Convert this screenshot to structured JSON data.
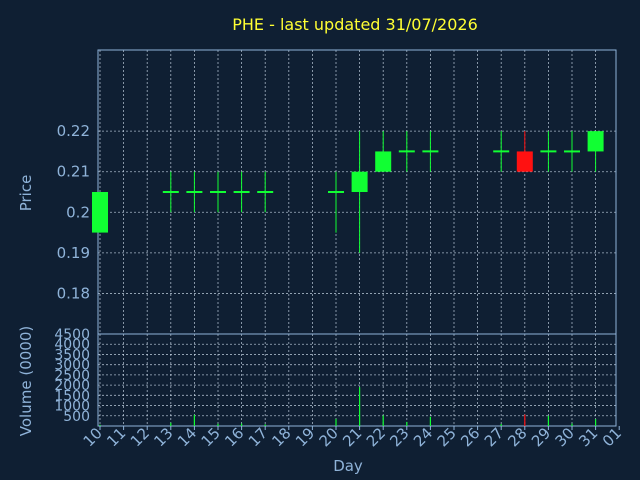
{
  "colors": {
    "background": "#0f1f33",
    "frame": "#8fb3d9",
    "grid": "#d8e6f5",
    "title": "#ffff33",
    "text": "#8fb3d9",
    "up": "#11ff33",
    "down": "#ff1111"
  },
  "chart_data": {
    "type": "candlestick",
    "title": "PHE - last updated 31/07/2026",
    "xlabel": "Day",
    "grid": true,
    "x_tick_labels": [
      "10",
      "11",
      "12",
      "13",
      "14",
      "15",
      "16",
      "17",
      "18",
      "19",
      "20",
      "21",
      "22",
      "23",
      "24",
      "25",
      "26",
      "27",
      "28",
      "29",
      "30",
      "31",
      "01"
    ],
    "price_panel": {
      "ylabel": "Price",
      "ylim": [
        0.17,
        0.24
      ],
      "y_ticks": [
        0.18,
        0.19,
        0.2,
        0.21,
        0.22
      ],
      "y_tick_labels": [
        "0.18",
        "0.19",
        "0.2",
        "0.21",
        "0.22"
      ]
    },
    "volume_panel": {
      "ylabel": "Volume (0000)",
      "ylim": [
        0,
        4500
      ],
      "y_ticks": [
        500,
        1000,
        1500,
        2000,
        2500,
        3000,
        3500,
        4000,
        4500
      ],
      "y_tick_labels": [
        "500",
        "1000",
        "1500",
        "2000",
        "2500",
        "3000",
        "3500",
        "4000",
        "4500"
      ]
    },
    "candles": [
      {
        "day": "10",
        "open": 0.195,
        "high": 0.205,
        "low": 0.195,
        "close": 0.205,
        "volume": 60
      },
      {
        "day": "13",
        "open": 0.205,
        "high": 0.21,
        "low": 0.2,
        "close": 0.205,
        "volume": 160
      },
      {
        "day": "14",
        "open": 0.205,
        "high": 0.21,
        "low": 0.2,
        "close": 0.205,
        "volume": 550
      },
      {
        "day": "15",
        "open": 0.205,
        "high": 0.21,
        "low": 0.2,
        "close": 0.205,
        "volume": 110
      },
      {
        "day": "16",
        "open": 0.205,
        "high": 0.21,
        "low": 0.2,
        "close": 0.205,
        "volume": 120
      },
      {
        "day": "17",
        "open": 0.205,
        "high": 0.21,
        "low": 0.2,
        "close": 0.205,
        "volume": 80
      },
      {
        "day": "20",
        "open": 0.205,
        "high": 0.21,
        "low": 0.195,
        "close": 0.205,
        "volume": 350
      },
      {
        "day": "21",
        "open": 0.205,
        "high": 0.22,
        "low": 0.19,
        "close": 0.21,
        "volume": 1900
      },
      {
        "day": "22",
        "open": 0.21,
        "high": 0.22,
        "low": 0.21,
        "close": 0.215,
        "volume": 520
      },
      {
        "day": "23",
        "open": 0.215,
        "high": 0.22,
        "low": 0.21,
        "close": 0.215,
        "volume": 200
      },
      {
        "day": "24",
        "open": 0.215,
        "high": 0.22,
        "low": 0.21,
        "close": 0.215,
        "volume": 450
      },
      {
        "day": "27",
        "open": 0.215,
        "high": 0.22,
        "low": 0.21,
        "close": 0.215,
        "volume": 100
      },
      {
        "day": "28",
        "open": 0.215,
        "high": 0.22,
        "low": 0.21,
        "close": 0.21,
        "volume": 560
      },
      {
        "day": "29",
        "open": 0.215,
        "high": 0.22,
        "low": 0.21,
        "close": 0.215,
        "volume": 500
      },
      {
        "day": "30",
        "open": 0.215,
        "high": 0.22,
        "low": 0.21,
        "close": 0.215,
        "volume": 120
      },
      {
        "day": "31",
        "open": 0.215,
        "high": 0.22,
        "low": 0.21,
        "close": 0.22,
        "volume": 340
      }
    ]
  }
}
